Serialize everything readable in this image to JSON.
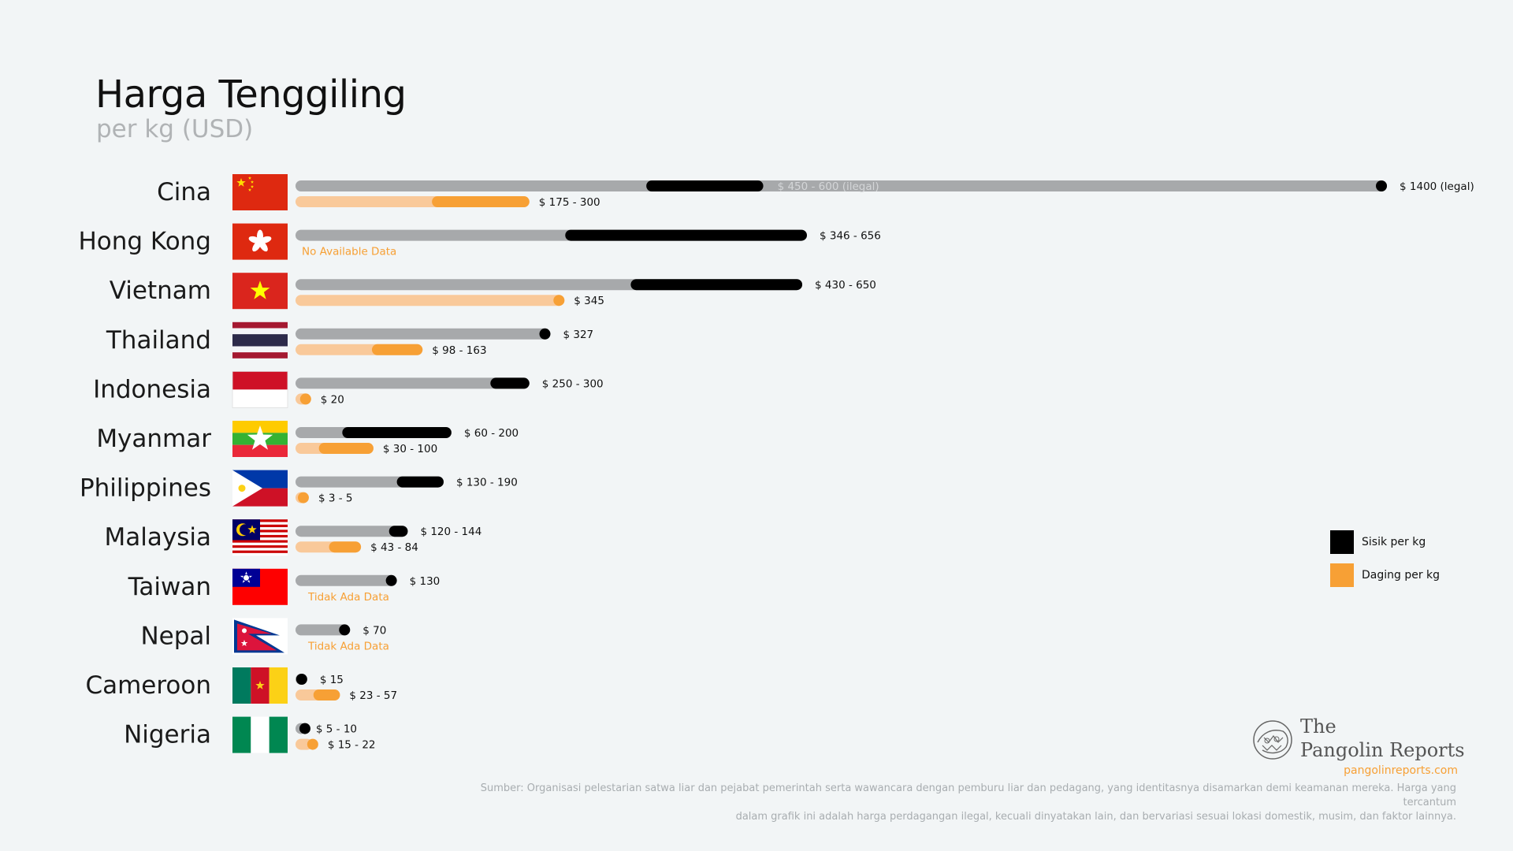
{
  "header": {
    "title": "Harga Tenggiling",
    "subtitle": "per kg (USD)"
  },
  "colors": {
    "bar_gray": "#a7a9ab",
    "scale_black": "#000000",
    "meat_light": "#f9c99a",
    "meat_orange": "#f7a035",
    "flag_red": "#de2910",
    "background": "#f2f5f6"
  },
  "legend": {
    "scale_label": "Sisik per kg",
    "meat_label": "Daging per kg",
    "position": "right"
  },
  "chart_data": {
    "type": "bar",
    "orientation": "horizontal",
    "series": [
      {
        "name": "Sisik per kg",
        "color": "#000000"
      },
      {
        "name": "Daging per kg",
        "color": "#f7a035"
      }
    ],
    "rows": [
      {
        "country": "Cina",
        "flag": "china-flag-icon",
        "scale": {
          "low": 450,
          "high": 600,
          "label": "$ 450 - 600 (ilegal)",
          "inside": true
        },
        "scale_extra": {
          "value": 1400,
          "label": "$ 1400 (legal)"
        },
        "meat": {
          "low": 175,
          "high": 300,
          "label": "$ 175 - 300"
        }
      },
      {
        "country": "Hong Kong",
        "flag": "hong-kong-flag-icon",
        "scale": {
          "low": 346,
          "high": 656,
          "label": "$ 346 - 656"
        },
        "meat": null,
        "meat_nodata": "No Available Data"
      },
      {
        "country": "Vietnam",
        "flag": "vietnam-flag-icon",
        "scale": {
          "low": 430,
          "high": 650,
          "label": "$ 430 - 650"
        },
        "meat": {
          "low": 345,
          "high": 345,
          "label": "$ 345"
        }
      },
      {
        "country": "Thailand",
        "flag": "thailand-flag-icon",
        "scale": {
          "low": 327,
          "high": 327,
          "label": "$ 327"
        },
        "meat": {
          "low": 98,
          "high": 163,
          "label": "$ 98 - 163"
        }
      },
      {
        "country": "Indonesia",
        "flag": "indonesia-flag-icon",
        "scale": {
          "low": 250,
          "high": 300,
          "label": "$ 250 - 300"
        },
        "meat": {
          "low": 20,
          "high": 20,
          "label": "$ 20"
        }
      },
      {
        "country": "Myanmar",
        "flag": "myanmar-flag-icon",
        "scale": {
          "low": 60,
          "high": 200,
          "label": "$ 60 - 200"
        },
        "meat": {
          "low": 30,
          "high": 100,
          "label": "$ 30 - 100"
        }
      },
      {
        "country": "Philippines",
        "flag": "philippines-flag-icon",
        "scale": {
          "low": 130,
          "high": 190,
          "label": "$ 130 - 190"
        },
        "meat": {
          "low": 3,
          "high": 5,
          "label": "$ 3 - 5"
        }
      },
      {
        "country": "Malaysia",
        "flag": "malaysia-flag-icon",
        "scale": {
          "low": 120,
          "high": 144,
          "label": "$ 120 - 144"
        },
        "meat": {
          "low": 43,
          "high": 84,
          "label": "$ 43 - 84"
        }
      },
      {
        "country": "Taiwan",
        "flag": "taiwan-flag-icon",
        "scale": {
          "low": 130,
          "high": 130,
          "label": "$ 130"
        },
        "meat": null,
        "meat_nodata": "Tidak Ada Data"
      },
      {
        "country": "Nepal",
        "flag": "nepal-flag-icon",
        "scale": {
          "low": 70,
          "high": 70,
          "label": "$ 70"
        },
        "meat": null,
        "meat_nodata": "Tidak Ada Data"
      },
      {
        "country": "Cameroon",
        "flag": "cameroon-flag-icon",
        "scale": {
          "low": 15,
          "high": 15,
          "label": "$ 15"
        },
        "meat": {
          "low": 23,
          "high": 57,
          "label": "$ 23 - 57"
        }
      },
      {
        "country": "Nigeria",
        "flag": "nigeria-flag-icon",
        "scale": {
          "low": 5,
          "high": 10,
          "label": "$ 5 - 10"
        },
        "meat": {
          "low": 15,
          "high": 22,
          "label": "$ 15 - 22"
        }
      }
    ]
  },
  "branding": {
    "line1": "The",
    "line2": "Pangolin Reports",
    "url": "pangolinreports.com"
  },
  "source": {
    "line1": "Sumber: Organisasi pelestarian satwa liar dan pejabat pemerintah serta wawancara dengan pemburu liar dan pedagang, yang identitasnya disamarkan demi keamanan mereka. Harga yang tercantum",
    "line2": "dalam grafik ini adalah harga perdagangan ilegal, kecuali dinyatakan lain, dan bervariasi sesuai lokasi domestik, musim, dan faktor lainnya."
  }
}
